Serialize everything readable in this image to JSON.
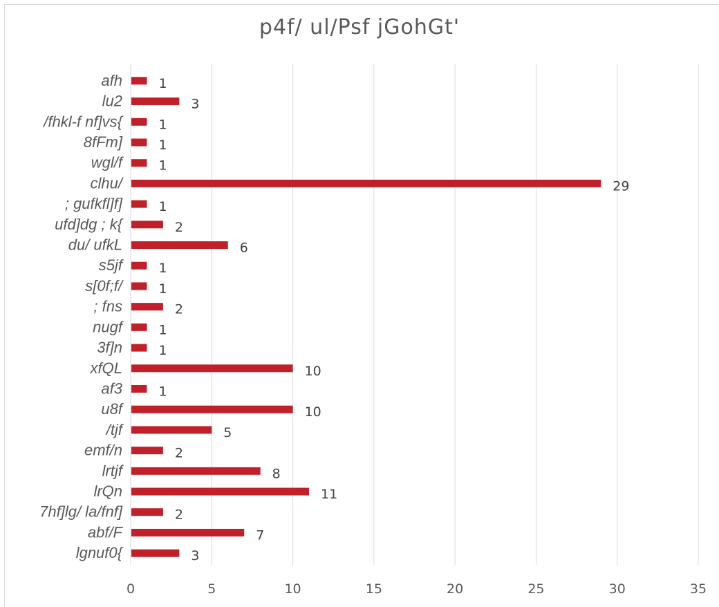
{
  "chart_data": {
    "type": "bar",
    "orientation": "horizontal",
    "title": "p4f/ ul/Psf jGohGt'",
    "categories": [
      "afh",
      "lu2",
      "/fhkl‐f nf]vs{",
      "8fFm]",
      "wgl/f",
      "clhu/",
      "; gufkfl]f]",
      "ufd]dg ; k{",
      "du/ ufkL",
      "s5jf",
      "s[0f;f/",
      "; fns",
      "nugf",
      "3f]n",
      "xfQL",
      "af3",
      "u8f",
      "/tjf",
      "emf/n",
      "lrtjf",
      "lrQn",
      "7hf]lg/ la/fnf]",
      "abf/F",
      "lgnuf0{"
    ],
    "values": [
      1,
      3,
      1,
      1,
      1,
      29,
      1,
      2,
      6,
      1,
      1,
      2,
      1,
      1,
      10,
      1,
      10,
      5,
      2,
      8,
      11,
      2,
      7,
      3
    ],
    "xlim": [
      0,
      35
    ],
    "xticks": [
      0,
      5,
      10,
      15,
      20,
      25,
      30,
      35
    ],
    "grid": true,
    "bar_color": "#c0202a",
    "grid_color": "#d9d9d9",
    "text_color": "#595959"
  }
}
